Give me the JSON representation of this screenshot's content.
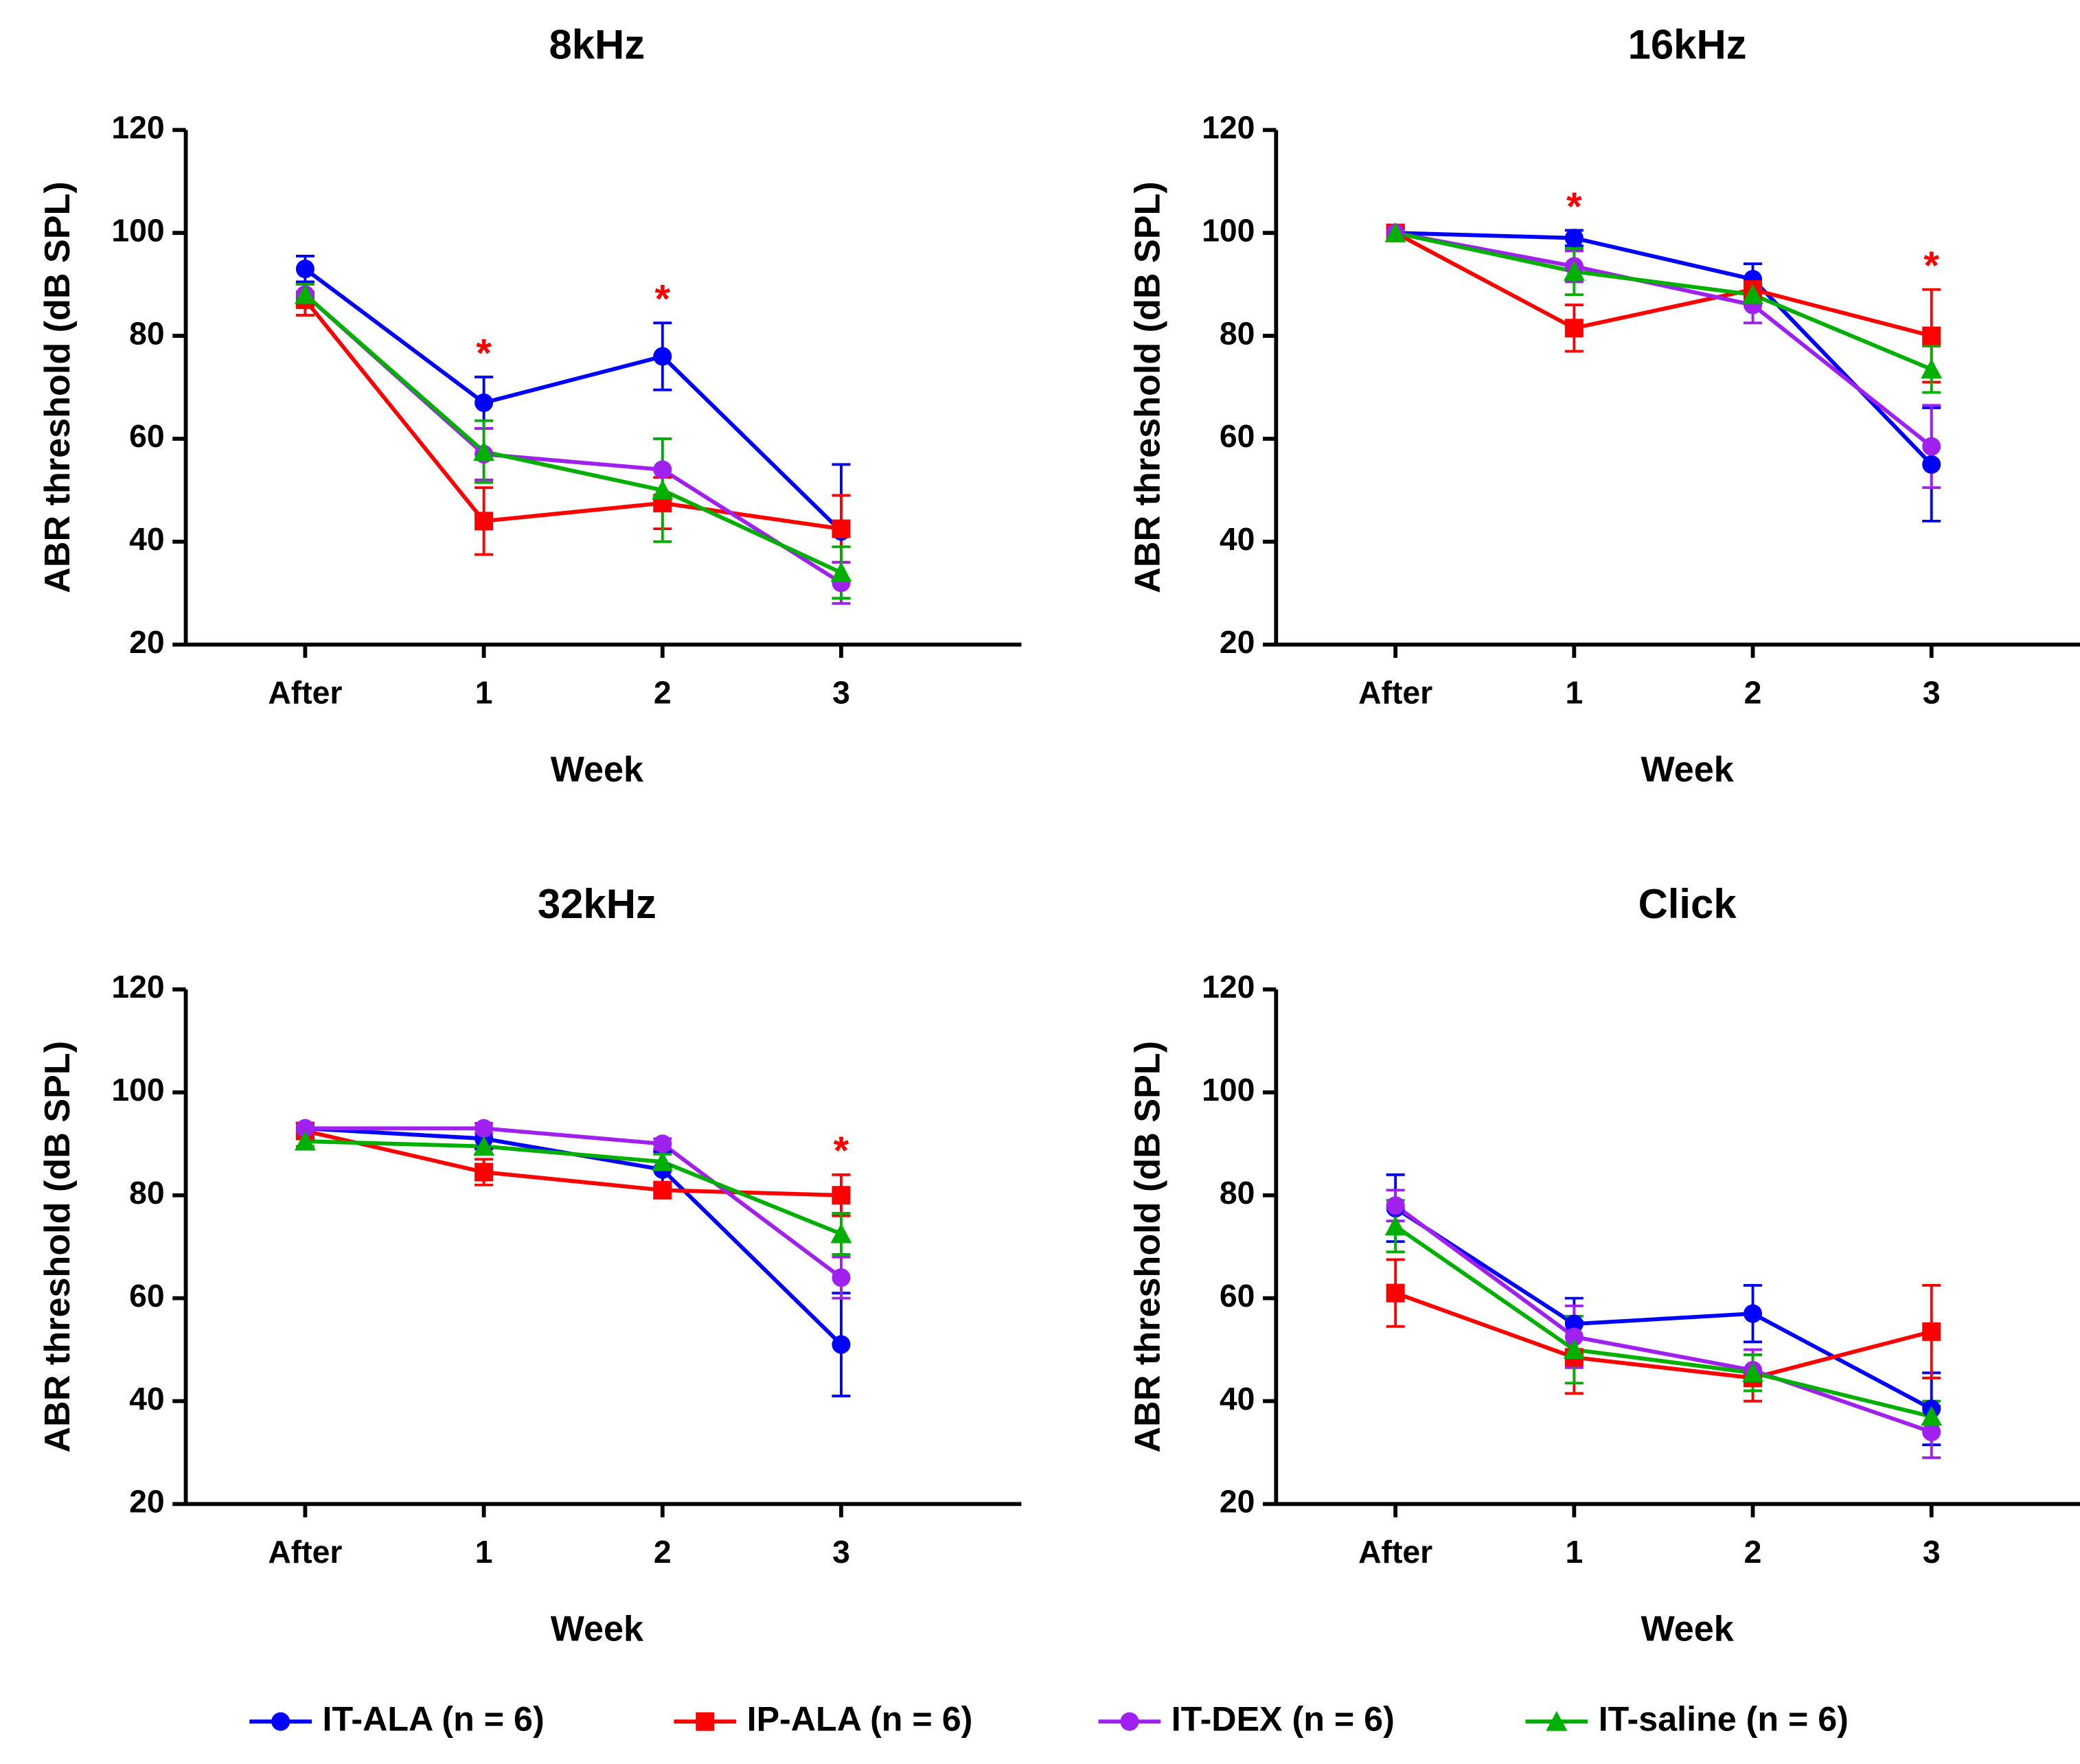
{
  "chart_data": [
    {
      "type": "line",
      "title": "8kHz",
      "xlabel": "Week",
      "ylabel": "ABR threshold (dB SPL)",
      "categories": [
        "After",
        "1",
        "2",
        "3"
      ],
      "ylim": [
        20,
        120
      ],
      "yticks": [
        20,
        40,
        60,
        80,
        100,
        120
      ],
      "series": [
        {
          "name": "IT-ALA (n = 6)",
          "color": "#0000ff",
          "marker": "circle",
          "values": [
            93,
            67,
            76,
            42
          ],
          "errors": [
            2.5,
            5,
            6.5,
            13
          ]
        },
        {
          "name": "IP-ALA (n = 6)",
          "color": "#ff0000",
          "marker": "square",
          "values": [
            87,
            44,
            47.5,
            42.5
          ],
          "errors": [
            3,
            6.5,
            5,
            6.5
          ]
        },
        {
          "name": "IT-DEX (n = 6)",
          "color": "#a020f0",
          "marker": "circle",
          "values": [
            88,
            57,
            54,
            32
          ],
          "errors": [
            2,
            5,
            6,
            4
          ]
        },
        {
          "name": "IT-saline (n = 6)",
          "color": "#00b000",
          "marker": "triangle",
          "values": [
            88,
            57.5,
            50,
            34
          ],
          "errors": [
            2,
            6,
            10,
            5
          ]
        }
      ],
      "annotations": [
        {
          "text": "*",
          "category_index": 1,
          "color": "#ff0000"
        },
        {
          "text": "*",
          "category_index": 2,
          "color": "#ff0000"
        }
      ]
    },
    {
      "type": "line",
      "title": "16kHz",
      "xlabel": "Week",
      "ylabel": "ABR threshold (dB SPL)",
      "categories": [
        "After",
        "1",
        "2",
        "3"
      ],
      "ylim": [
        20,
        120
      ],
      "yticks": [
        20,
        40,
        60,
        80,
        100,
        120
      ],
      "series": [
        {
          "color": "#0000ff",
          "marker": "circle",
          "values": [
            100,
            99,
            91,
            55
          ],
          "errors": [
            1,
            1.5,
            3,
            11
          ]
        },
        {
          "color": "#ff0000",
          "marker": "square",
          "values": [
            100,
            81.5,
            89,
            80
          ],
          "errors": [
            1,
            4.5,
            2,
            9
          ]
        },
        {
          "color": "#a020f0",
          "marker": "circle",
          "values": [
            100,
            93.5,
            86,
            58.5
          ],
          "errors": [
            1,
            3,
            3.5,
            8
          ]
        },
        {
          "color": "#00b000",
          "marker": "triangle",
          "values": [
            100,
            92.5,
            88,
            73.5
          ],
          "errors": [
            1,
            4.5,
            2,
            4.5
          ]
        }
      ],
      "annotations": [
        {
          "text": "*",
          "category_index": 1,
          "color": "#ff0000"
        },
        {
          "text": "*",
          "category_index": 3,
          "color": "#ff0000"
        }
      ]
    },
    {
      "type": "line",
      "title": "32kHz",
      "xlabel": "Week",
      "ylabel": "ABR threshold (dB SPL)",
      "categories": [
        "After",
        "1",
        "2",
        "3"
      ],
      "ylim": [
        20,
        120
      ],
      "yticks": [
        20,
        40,
        60,
        80,
        100,
        120
      ],
      "series": [
        {
          "color": "#0000ff",
          "marker": "circle",
          "values": [
            93,
            91,
            85,
            51
          ],
          "errors": [
            1,
            2,
            3.5,
            10
          ]
        },
        {
          "color": "#ff0000",
          "marker": "square",
          "values": [
            92.5,
            84.5,
            81,
            80
          ],
          "errors": [
            1.5,
            2.5,
            1.5,
            4
          ]
        },
        {
          "color": "#a020f0",
          "marker": "circle",
          "values": [
            93,
            93,
            90,
            64
          ],
          "errors": [
            1,
            1,
            1,
            4
          ]
        },
        {
          "color": "#00b000",
          "marker": "triangle",
          "values": [
            90.5,
            89.5,
            86.5,
            72.5
          ],
          "errors": [
            1,
            1.5,
            1.5,
            4
          ]
        }
      ],
      "annotations": [
        {
          "text": "*",
          "category_index": 3,
          "color": "#ff0000"
        }
      ]
    },
    {
      "type": "line",
      "title": "Click",
      "xlabel": "Week",
      "ylabel": "ABR threshold (dB SPL)",
      "categories": [
        "After",
        "1",
        "2",
        "3"
      ],
      "ylim": [
        20,
        120
      ],
      "yticks": [
        20,
        40,
        60,
        80,
        100,
        120
      ],
      "series": [
        {
          "color": "#0000ff",
          "marker": "circle",
          "values": [
            77.5,
            55,
            57,
            38.5
          ],
          "errors": [
            6.5,
            5,
            5.5,
            7
          ]
        },
        {
          "color": "#ff0000",
          "marker": "square",
          "values": [
            61,
            48.5,
            44.5,
            53.5
          ],
          "errors": [
            6.5,
            7,
            4.5,
            9
          ]
        },
        {
          "color": "#a020f0",
          "marker": "circle",
          "values": [
            78,
            52.5,
            46,
            34
          ],
          "errors": [
            3,
            6,
            4,
            5
          ]
        },
        {
          "color": "#00b000",
          "marker": "triangle",
          "values": [
            74,
            50,
            45.5,
            37
          ],
          "errors": [
            5,
            6.5,
            3.5,
            3
          ]
        }
      ]
    }
  ]
}
